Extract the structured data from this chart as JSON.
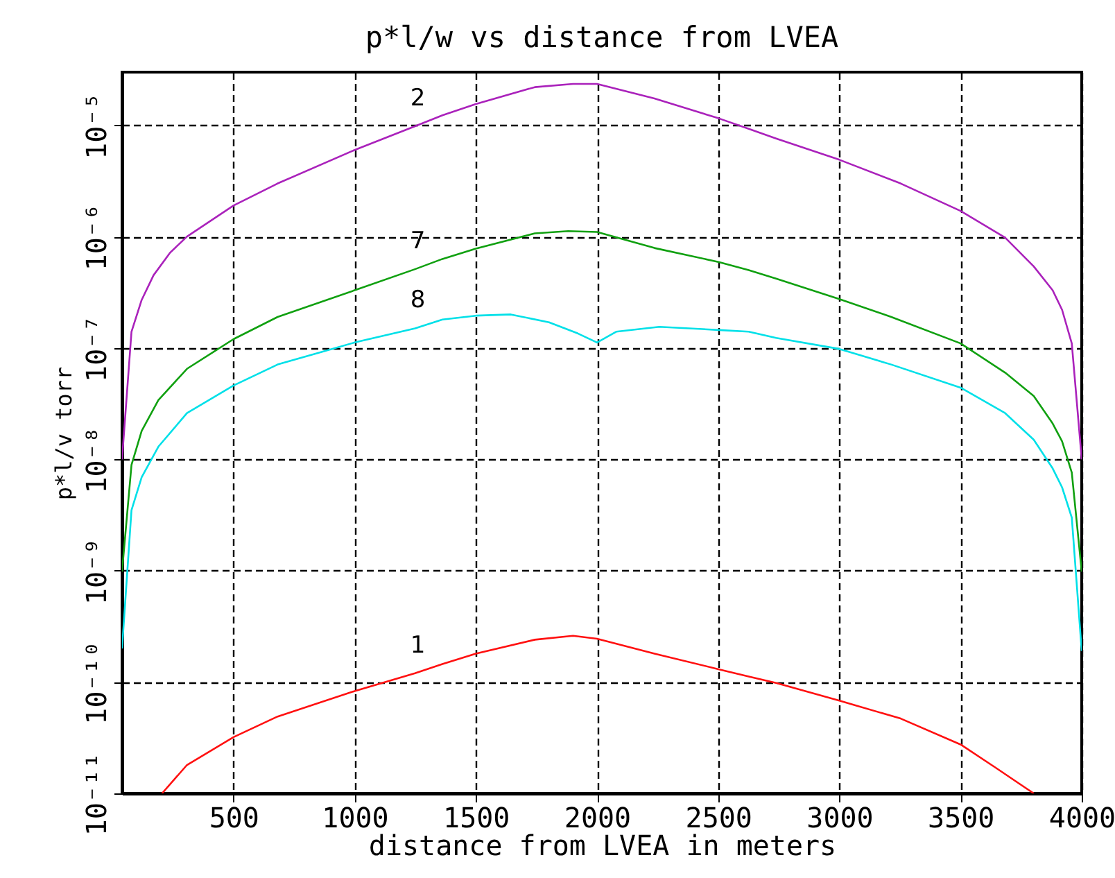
{
  "chart_data": {
    "type": "line",
    "title": "p*l/w vs distance from LVEA",
    "xlabel": "distance from LVEA in meters",
    "ylabel": "p*l/v torr",
    "xlim": [
      40,
      4000
    ],
    "xticks": [
      500,
      1000,
      1500,
      2000,
      2500,
      3000,
      3500,
      4000
    ],
    "ylim": [
      1e-11,
      3e-05
    ],
    "yticks": [
      {
        "value": 1e-11,
        "label": "10⁻¹¹"
      },
      {
        "value": 1e-10,
        "label": "10⁻¹⁰"
      },
      {
        "value": 1e-09,
        "label": "10⁻⁹"
      },
      {
        "value": 1e-08,
        "label": "10⁻⁸"
      },
      {
        "value": 1e-07,
        "label": "10⁻⁷"
      },
      {
        "value": 1e-06,
        "label": "10⁻⁶"
      },
      {
        "value": 1e-05,
        "label": "10⁻⁵"
      }
    ],
    "log": "y",
    "grid": true,
    "line_style": "solid",
    "series": [
      {
        "name": "2",
        "color": "#aa22bb",
        "x": [
          40,
          79,
          121,
          170,
          239,
          308,
          500,
          682,
          1000,
          1249,
          1362,
          1500,
          1743,
          1901,
          2000,
          2237,
          2504,
          2626,
          2739,
          3000,
          3253,
          3500,
          3684,
          3802,
          3880,
          3919,
          3959,
          4000
        ],
        "values": [
          1e-08,
          1.4e-07,
          2.7e-07,
          4.5e-07,
          7.2e-07,
          1e-06,
          1.9e-06,
          3e-06,
          6e-06,
          9.8e-06,
          1.23e-05,
          1.55e-05,
          2.2e-05,
          2.35e-05,
          2.35e-05,
          1.74e-05,
          1.15e-05,
          9.3e-06,
          7.6e-06,
          4.9e-06,
          3e-06,
          1.7e-06,
          9.8e-07,
          5.4e-07,
          3.3e-07,
          2.2e-07,
          1.1e-07,
          1e-08
        ]
      },
      {
        "name": "7",
        "color": "#10a010",
        "x": [
          40,
          79,
          121,
          190,
          308,
          500,
          682,
          1000,
          1249,
          1362,
          1500,
          1743,
          1881,
          2000,
          2237,
          2504,
          2626,
          2739,
          3000,
          3214,
          3500,
          3684,
          3802,
          3880,
          3919,
          3959,
          4000
        ],
        "values": [
          9.8e-10,
          8.9e-09,
          1.8e-08,
          3.4e-08,
          6.5e-08,
          1.2e-07,
          1.9e-07,
          3.3e-07,
          5.1e-07,
          6.3e-07,
          7.8e-07,
          1.07e-06,
          1.12e-06,
          1.1e-06,
          7.9e-07,
          5.9e-07,
          5e-07,
          4.2e-07,
          2.75e-07,
          1.9e-07,
          1.1e-07,
          6e-08,
          3.7e-08,
          2.1e-08,
          1.45e-08,
          7.6e-09,
          9.8e-10
        ]
      },
      {
        "name": "8",
        "color": "#00e0e8",
        "x": [
          40,
          79,
          121,
          190,
          308,
          500,
          682,
          1000,
          1249,
          1362,
          1500,
          1644,
          1802,
          1921,
          2000,
          2079,
          2257,
          2504,
          2626,
          2739,
          3000,
          3214,
          3500,
          3684,
          3802,
          3880,
          3919,
          3959,
          4000
        ],
        "values": [
          2e-10,
          3.5e-09,
          6.9e-09,
          1.3e-08,
          2.6e-08,
          4.6e-08,
          7.1e-08,
          1.12e-07,
          1.5e-07,
          1.8e-07,
          1.95e-07,
          2e-07,
          1.7e-07,
          1.35e-07,
          1.12e-07,
          1.4e-07,
          1.55e-07,
          1.45e-07,
          1.4e-07,
          1.23e-07,
          9.8e-08,
          7.1e-08,
          4.4e-08,
          2.6e-08,
          1.5e-08,
          8.3e-09,
          5.6e-09,
          3e-09,
          1.9e-10
        ]
      },
      {
        "name": "1",
        "color": "#ff1010",
        "x": [
          205,
          308,
          500,
          682,
          1000,
          1249,
          1362,
          1500,
          1743,
          1901,
          2000,
          2237,
          2504,
          2626,
          2739,
          3000,
          3253,
          3500,
          3645,
          3802
        ],
        "values": [
          1e-11,
          1.8e-11,
          3.2e-11,
          4.9e-11,
          8.3e-11,
          1.2e-10,
          1.45e-10,
          1.8e-10,
          2.4e-10,
          2.6e-10,
          2.45e-10,
          1.8e-10,
          1.3e-10,
          1.12e-10,
          9.8e-11,
          6.8e-11,
          4.7e-11,
          2.75e-11,
          1.7e-11,
          1e-11
        ]
      }
    ]
  }
}
